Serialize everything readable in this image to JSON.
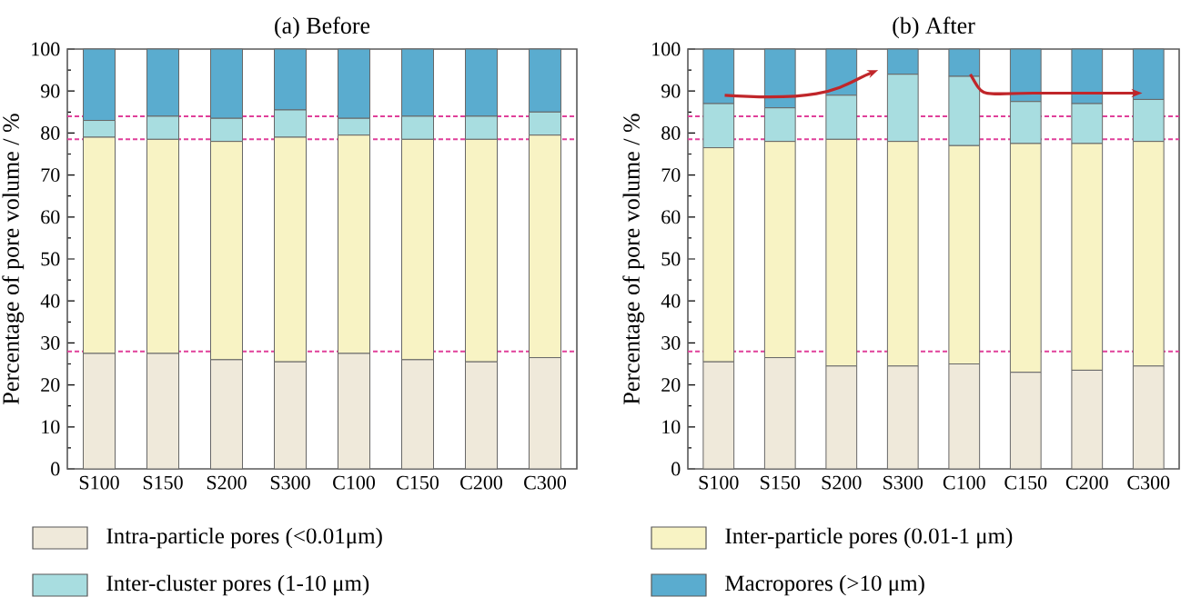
{
  "chart_data": [
    {
      "type": "bar",
      "title": "(a) Before",
      "ylabel": "Percentage of pore volume  / %",
      "stacked": true,
      "legend": "bottom",
      "categories": [
        "S100",
        "S150",
        "S200",
        "S300",
        "C100",
        "C150",
        "C200",
        "C300"
      ],
      "ylim": [
        0,
        100
      ],
      "yticks": [
        0,
        10,
        20,
        30,
        40,
        50,
        60,
        70,
        80,
        90,
        100
      ],
      "series": [
        {
          "name": "Intra-particle pores (<0.01μm)",
          "color": "#efe9da",
          "values": [
            27.5,
            27.5,
            26,
            25.5,
            27.5,
            26,
            25.5,
            26.5
          ]
        },
        {
          "color": "#f8f3c4",
          "values": [
            51.5,
            51,
            52,
            53.5,
            52,
            52.5,
            53,
            53
          ]
        },
        {
          "name": "Inter-cluster pores (1-10 μm)",
          "color": "#a8dde0",
          "values": [
            4,
            5.5,
            5.5,
            6.5,
            4,
            5.5,
            5.5,
            5.5
          ]
        },
        {
          "color": "#5aaccf",
          "values": [
            17,
            16,
            16.5,
            14.5,
            16.5,
            16,
            16,
            15
          ]
        }
      ],
      "ref_lines": [
        {
          "axis": "y",
          "value": 28,
          "color": "#e0409a",
          "line_style": "dashed"
        },
        {
          "axis": "y",
          "value": 78.5,
          "color": "#e0409a",
          "line_style": "dashed"
        },
        {
          "axis": "y",
          "value": 84,
          "color": "#e0409a",
          "line_style": "dashed"
        }
      ]
    },
    {
      "type": "bar",
      "title": "(b) After",
      "ylabel": "Percentage of pore volume  / %",
      "stacked": true,
      "legend": "bottom",
      "categories": [
        "S100",
        "S150",
        "S200",
        "S300",
        "C100",
        "C150",
        "C200",
        "C300"
      ],
      "ylim": [
        0,
        100
      ],
      "yticks": [
        0,
        10,
        20,
        30,
        40,
        50,
        60,
        70,
        80,
        90,
        100
      ],
      "series": [
        {
          "color": "#efe9da",
          "values": [
            25.5,
            26.5,
            24.5,
            24.5,
            25,
            23,
            23.5,
            24.5
          ]
        },
        {
          "name": "Inter-particle pores (0.01-1 μm)",
          "color": "#f8f3c4",
          "values": [
            51,
            51.5,
            54,
            53.5,
            52,
            54.5,
            54,
            53.5
          ]
        },
        {
          "color": "#a8dde0",
          "values": [
            10.5,
            8,
            10.5,
            16,
            16.5,
            10,
            9.5,
            10
          ]
        },
        {
          "name": "Macropores (>10 μm)",
          "color": "#5aaccf",
          "values": [
            13,
            14,
            11,
            6,
            6.5,
            12.5,
            13,
            12
          ]
        }
      ],
      "ref_lines": [
        {
          "axis": "y",
          "value": 28,
          "color": "#e0409a",
          "line_style": "dashed"
        },
        {
          "axis": "y",
          "value": 78.5,
          "color": "#e0409a",
          "line_style": "dashed"
        },
        {
          "axis": "y",
          "value": 84,
          "color": "#e0409a",
          "line_style": "dashed"
        }
      ]
    }
  ]
}
